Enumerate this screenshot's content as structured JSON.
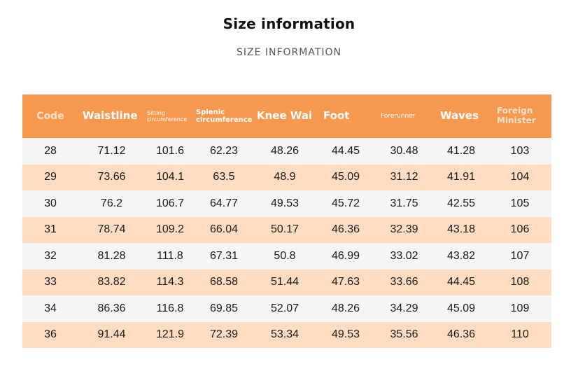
{
  "page": {
    "title": "Size information",
    "subtitle": "SIZE INFORMATION"
  },
  "colors": {
    "header_bg": "#f7984f",
    "row_light": "#f5f5f7",
    "row_peach": "#fddcc1"
  },
  "table": {
    "headers": [
      "Code",
      "Waistline",
      "Sitting circumference",
      "Splenic circumference",
      "Knee Wai",
      "Foot",
      "Forerunner",
      "Waves",
      "Foreign Minister"
    ],
    "header_lines": {
      "sitting": [
        "Sitting",
        "circumference"
      ],
      "splenic": [
        "Splenic",
        "circumference"
      ],
      "foreign": [
        "Foreign",
        "Minister"
      ]
    },
    "rows": [
      [
        "28",
        "71.12",
        "101.6",
        "62.23",
        "48.26",
        "44.45",
        "30.48",
        "41.28",
        "103"
      ],
      [
        "29",
        "73.66",
        "104.1",
        "63.5",
        "48.9",
        "45.09",
        "31.12",
        "41.91",
        "104"
      ],
      [
        "30",
        "76.2",
        "106.7",
        "64.77",
        "49.53",
        "45.72",
        "31.75",
        "42.55",
        "105"
      ],
      [
        "31",
        "78.74",
        "109.2",
        "66.04",
        "50.17",
        "46.36",
        "32.39",
        "43.18",
        "106"
      ],
      [
        "32",
        "81.28",
        "111.8",
        "67.31",
        "50.8",
        "46.99",
        "33.02",
        "43.82",
        "107"
      ],
      [
        "33",
        "83.82",
        "114.3",
        "68.58",
        "51.44",
        "47.63",
        "33.66",
        "44.45",
        "108"
      ],
      [
        "34",
        "86.36",
        "116.8",
        "69.85",
        "52.07",
        "48.26",
        "34.29",
        "45.09",
        "109"
      ],
      [
        "36",
        "91.44",
        "121.9",
        "72.39",
        "53.34",
        "49.53",
        "35.56",
        "46.36",
        "110"
      ]
    ]
  }
}
